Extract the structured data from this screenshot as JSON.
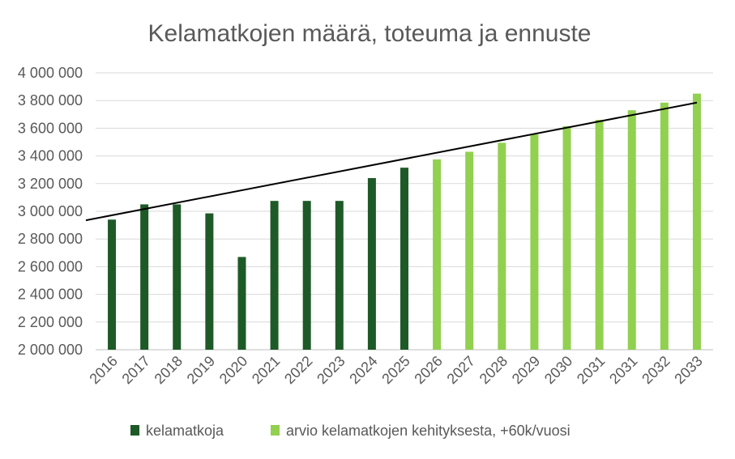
{
  "chart_data": {
    "type": "bar",
    "title": "Kelamatkojen määrä, toteuma ja ennuste",
    "xlabel": "",
    "ylabel": "",
    "ylim": [
      2000000,
      4000000
    ],
    "yticks": [
      2000000,
      2200000,
      2400000,
      2600000,
      2800000,
      3000000,
      3200000,
      3400000,
      3600000,
      3800000,
      4000000
    ],
    "ytick_labels": [
      "2 000 000",
      "2 200 000",
      "2 400 000",
      "2 600 000",
      "2 800 000",
      "3 000 000",
      "3 200 000",
      "3 400 000",
      "3 600 000",
      "3 800 000",
      "4 000 000"
    ],
    "categories": [
      "2016",
      "2017",
      "2018",
      "2019",
      "2020",
      "2021",
      "2022",
      "2023",
      "2024",
      "2025",
      "2026",
      "2027",
      "2028",
      "2029",
      "2030",
      "2031",
      "2031",
      "2032",
      "2033"
    ],
    "series": [
      {
        "name": "kelamatkoja",
        "color": "#1e5a27",
        "values": [
          2940000,
          3050000,
          3050000,
          2985000,
          2670000,
          3075000,
          3075000,
          3075000,
          3240000,
          3315000,
          null,
          null,
          null,
          null,
          null,
          null,
          null,
          null,
          null
        ]
      },
      {
        "name": "arvio kelamatkojen kehityksesta, +60k/vuosi",
        "color": "#92d050",
        "values": [
          null,
          null,
          null,
          null,
          null,
          null,
          null,
          null,
          null,
          null,
          3375000,
          3430000,
          3495000,
          3555000,
          3615000,
          3660000,
          3730000,
          3785000,
          3850000
        ]
      }
    ],
    "trendline": {
      "color": "#000000",
      "start": 2935000,
      "end": 3785000
    },
    "grid": true,
    "legend": "bottom"
  }
}
